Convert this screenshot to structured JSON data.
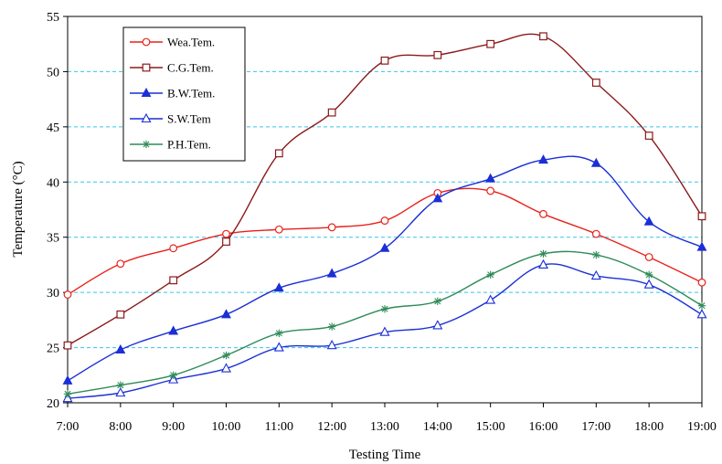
{
  "chart_data": {
    "type": "line",
    "xlabel": "Testing Time",
    "ylabel": "Temperature (°C)",
    "ylim": [
      20,
      55
    ],
    "yticks": [
      20,
      25,
      30,
      35,
      40,
      45,
      50,
      55
    ],
    "grid": "horizontal dashed",
    "legend_position": "top-left",
    "categories": [
      "7:00",
      "8:00",
      "9:00",
      "10:00",
      "11:00",
      "12:00",
      "13:00",
      "14:00",
      "15:00",
      "16:00",
      "17:00",
      "18:00",
      "19:00"
    ],
    "series": [
      {
        "name": "Wea.Tem.",
        "marker": "circle-open",
        "color": "#e8221b",
        "values": [
          29.8,
          32.6,
          34.0,
          35.3,
          35.7,
          35.9,
          36.5,
          39.0,
          39.2,
          37.1,
          35.3,
          33.2,
          30.9
        ]
      },
      {
        "name": "C.G.Tem.",
        "marker": "square-open",
        "color": "#8b1a1a",
        "values": [
          25.2,
          28.0,
          31.1,
          34.6,
          42.6,
          46.3,
          51.0,
          51.5,
          52.5,
          53.2,
          49.0,
          44.2,
          36.9
        ]
      },
      {
        "name": "B.W.Tem.",
        "marker": "triangle-filled",
        "color": "#1a2fd6",
        "values": [
          22.0,
          24.8,
          26.5,
          28.0,
          30.4,
          31.7,
          34.0,
          38.5,
          40.3,
          42.0,
          41.7,
          36.4,
          34.1
        ]
      },
      {
        "name": "S.W.Tem",
        "marker": "triangle-open",
        "color": "#1a2fd6",
        "values": [
          20.4,
          20.9,
          22.1,
          23.1,
          25.0,
          25.2,
          26.4,
          27.0,
          29.3,
          32.5,
          31.5,
          30.7,
          28.0
        ]
      },
      {
        "name": "P.H.Tem.",
        "marker": "star",
        "color": "#2e8b57",
        "values": [
          20.8,
          21.6,
          22.5,
          24.3,
          26.3,
          26.9,
          28.5,
          29.2,
          31.6,
          33.5,
          33.4,
          31.6,
          28.8
        ]
      }
    ]
  }
}
